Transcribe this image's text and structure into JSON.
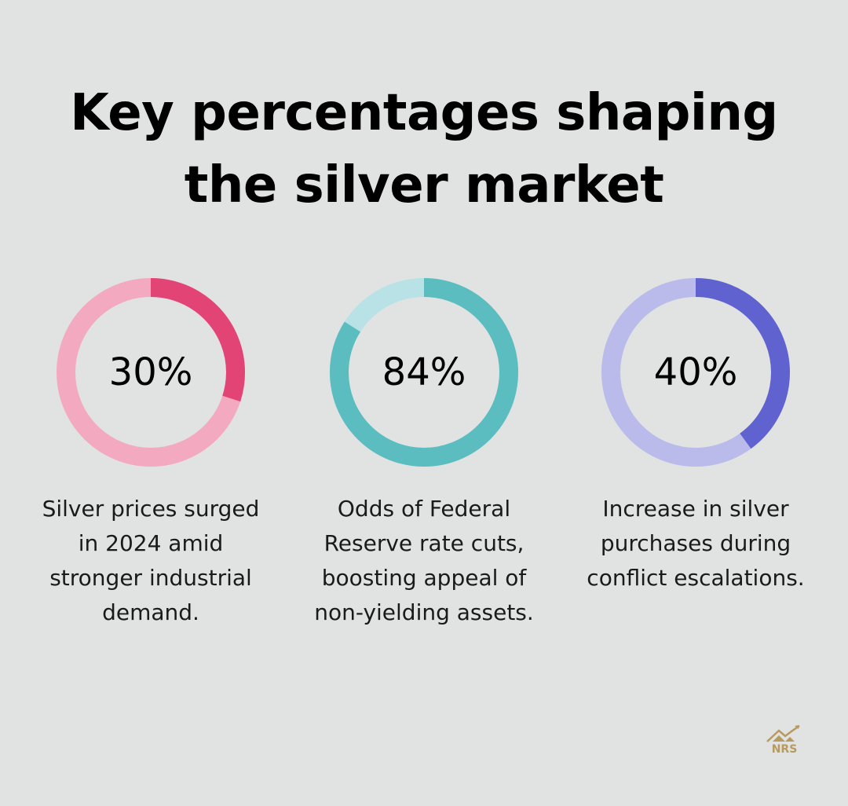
{
  "title": "Key percentages shaping the silver market",
  "title_lines": [
    "Key percentages shaping",
    "the silver market"
  ],
  "stats": [
    {
      "value": "30%",
      "percent": 30,
      "description": "Silver prices surged in 2024 amid stronger industrial demand.",
      "color": "#e34476",
      "track_color": "#f3a9bf"
    },
    {
      "value": "84%",
      "percent": 84,
      "description": "Odds of Federal Reserve rate cuts, boosting appeal of non-yielding assets.",
      "color": "#5bbdbf",
      "track_color": "#b8e2e5"
    },
    {
      "value": "40%",
      "percent": 40,
      "description": "Increase in silver purchases during conflict escalations.",
      "color": "#6063cf",
      "track_color": "#babbea"
    }
  ],
  "logo": {
    "text": "NRS",
    "color": "#b89a5e"
  },
  "chart_data": {
    "type": "pie",
    "subtype": "donut-progress",
    "title": "Key percentages shaping the silver market",
    "categories": [
      "Silver price surge 2024",
      "Odds of Fed rate cuts",
      "Increase in purchases during conflict"
    ],
    "values": [
      30,
      84,
      40
    ],
    "labels": [
      "30%",
      "84%",
      "40%"
    ],
    "descriptions": [
      "Silver prices surged in 2024 amid stronger industrial demand.",
      "Odds of Federal Reserve rate cuts, boosting appeal of non-yielding assets.",
      "Increase in silver purchases during conflict escalations."
    ],
    "colors": [
      "#e34476",
      "#5bbdbf",
      "#6063cf"
    ]
  }
}
